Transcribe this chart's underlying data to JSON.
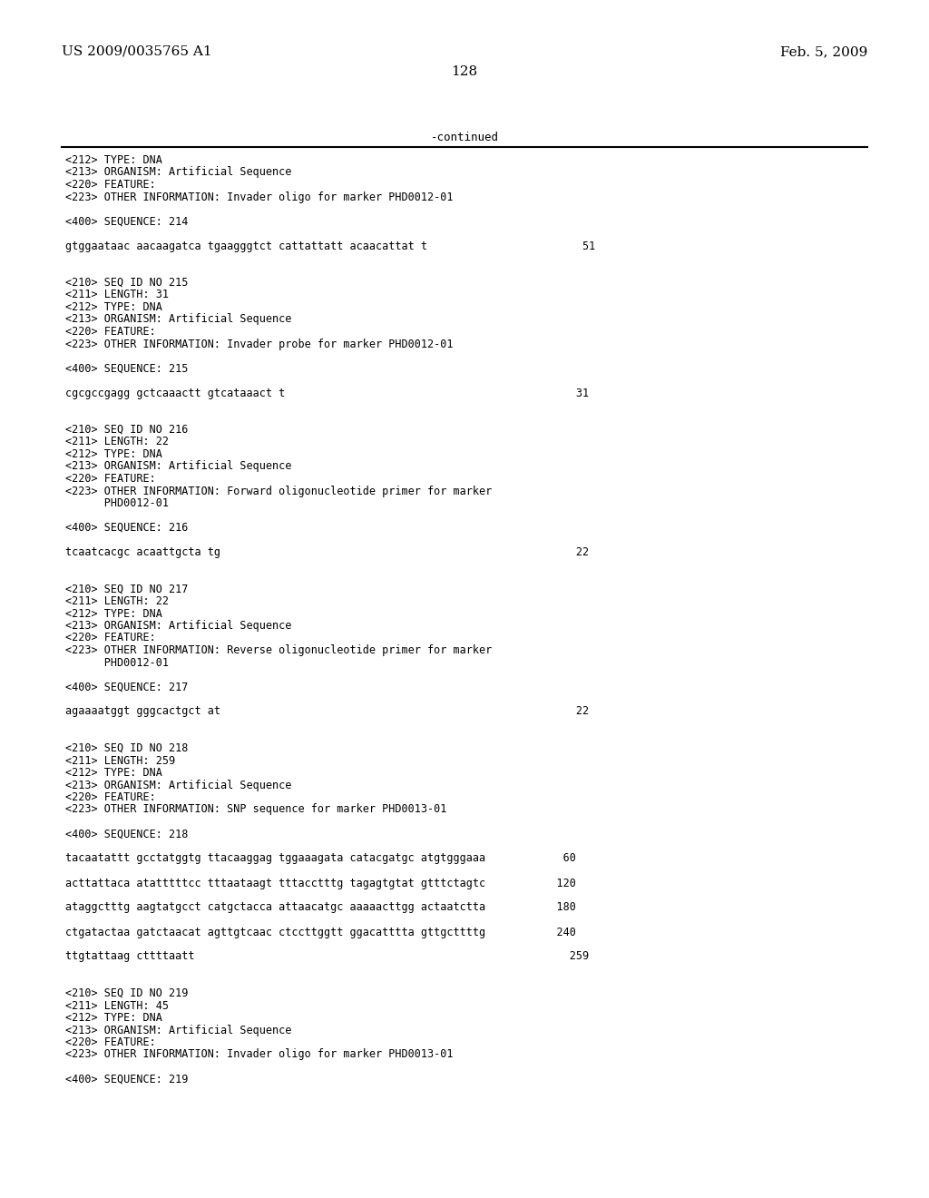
{
  "header_left": "US 2009/0035765 A1",
  "header_right": "Feb. 5, 2009",
  "page_number": "128",
  "continued_text": "-continued",
  "background_color": "#ffffff",
  "text_color": "#000000",
  "lines": [
    "<212> TYPE: DNA",
    "<213> ORGANISM: Artificial Sequence",
    "<220> FEATURE:",
    "<223> OTHER INFORMATION: Invader oligo for marker PHD0012-01",
    "",
    "<400> SEQUENCE: 214",
    "",
    "gtggaataac aacaagatca tgaagggtct cattattatt acaacattat t                        51",
    "",
    "",
    "<210> SEQ ID NO 215",
    "<211> LENGTH: 31",
    "<212> TYPE: DNA",
    "<213> ORGANISM: Artificial Sequence",
    "<220> FEATURE:",
    "<223> OTHER INFORMATION: Invader probe for marker PHD0012-01",
    "",
    "<400> SEQUENCE: 215",
    "",
    "cgcgccgagg gctcaaactt gtcataaact t                                             31",
    "",
    "",
    "<210> SEQ ID NO 216",
    "<211> LENGTH: 22",
    "<212> TYPE: DNA",
    "<213> ORGANISM: Artificial Sequence",
    "<220> FEATURE:",
    "<223> OTHER INFORMATION: Forward oligonucleotide primer for marker",
    "      PHD0012-01",
    "",
    "<400> SEQUENCE: 216",
    "",
    "tcaatcacgc acaattgcta tg                                                       22",
    "",
    "",
    "<210> SEQ ID NO 217",
    "<211> LENGTH: 22",
    "<212> TYPE: DNA",
    "<213> ORGANISM: Artificial Sequence",
    "<220> FEATURE:",
    "<223> OTHER INFORMATION: Reverse oligonucleotide primer for marker",
    "      PHD0012-01",
    "",
    "<400> SEQUENCE: 217",
    "",
    "agaaaatggt gggcactgct at                                                       22",
    "",
    "",
    "<210> SEQ ID NO 218",
    "<211> LENGTH: 259",
    "<212> TYPE: DNA",
    "<213> ORGANISM: Artificial Sequence",
    "<220> FEATURE:",
    "<223> OTHER INFORMATION: SNP sequence for marker PHD0013-01",
    "",
    "<400> SEQUENCE: 218",
    "",
    "tacaatattt gcctatggtg ttacaaggag tggaaagata catacgatgc atgtgggaaa            60",
    "",
    "acttattaca atatttttcc tttaataagt tttacctttg tagagtgtat gtttctagtc           120",
    "",
    "ataggctttg aagtatgcct catgctacca attaacatgc aaaaacttgg actaatctta           180",
    "",
    "ctgatactaa gatctaacat agttgtcaac ctccttggtt ggacatttta gttgcttttg           240",
    "",
    "ttgtattaag cttttaatt                                                          259",
    "",
    "",
    "<210> SEQ ID NO 219",
    "<211> LENGTH: 45",
    "<212> TYPE: DNA",
    "<213> ORGANISM: Artificial Sequence",
    "<220> FEATURE:",
    "<223> OTHER INFORMATION: Invader oligo for marker PHD0013-01",
    "",
    "<400> SEQUENCE: 219"
  ]
}
